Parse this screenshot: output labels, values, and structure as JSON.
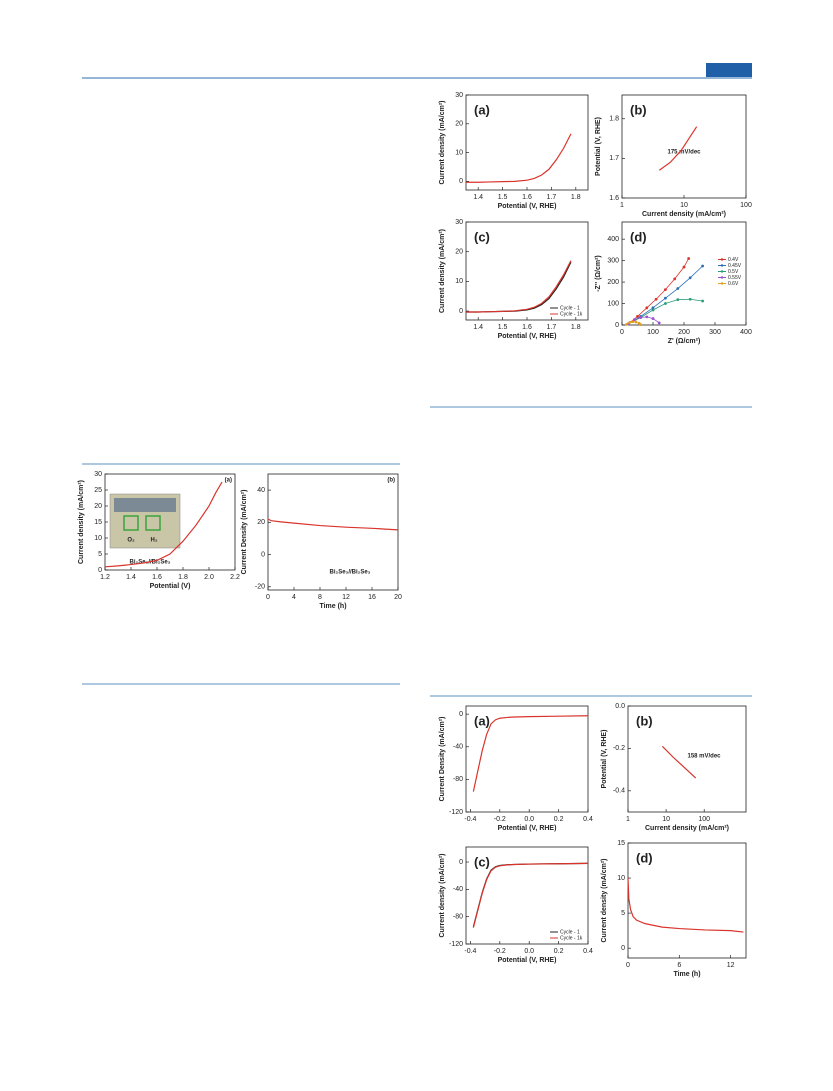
{
  "chart_data": [
    {
      "type": "line",
      "panel_label": "(a)",
      "xlabel": "Potential (V, RHE)",
      "ylabel": "Current density (mA/cm²)",
      "xlim": [
        1.35,
        1.85
      ],
      "ylim": [
        -3,
        30
      ],
      "xticks": [
        1.4,
        1.5,
        1.6,
        1.7,
        1.8
      ],
      "yticks": [
        0,
        10,
        20,
        30
      ],
      "series": [
        {
          "color": "#d9342b",
          "x": [
            1.35,
            1.4,
            1.45,
            1.5,
            1.55,
            1.6,
            1.63,
            1.66,
            1.69,
            1.72,
            1.75,
            1.78
          ],
          "values": [
            -0.3,
            -0.3,
            -0.2,
            -0.1,
            0,
            0.4,
            1,
            2.2,
            4.2,
            7.5,
            11.5,
            16.5
          ]
        }
      ]
    },
    {
      "type": "line",
      "panel_label": "(b)",
      "xlabel": "Current density (mA/cm²)",
      "ylabel": "Potential (V, RHE)",
      "note": "175 mV/dec",
      "xscale": "log",
      "xlim": [
        1,
        100
      ],
      "ylim": [
        1.6,
        1.86
      ],
      "xticks": [
        1,
        10,
        100
      ],
      "yticks": [
        1.6,
        1.7,
        1.8
      ],
      "series": [
        {
          "color": "#d9342b",
          "x": [
            4,
            6,
            9,
            12,
            16
          ],
          "values": [
            1.67,
            1.69,
            1.72,
            1.75,
            1.78
          ]
        }
      ]
    },
    {
      "type": "line",
      "panel_label": "(c)",
      "xlabel": "Potential (V, RHE)",
      "ylabel": "Current density (mA/cm²)",
      "legend": "lower right",
      "xlim": [
        1.35,
        1.85
      ],
      "ylim": [
        -3,
        30
      ],
      "xticks": [
        1.4,
        1.5,
        1.6,
        1.7,
        1.8
      ],
      "yticks": [
        0,
        10,
        20,
        30
      ],
      "series": [
        {
          "name": "Cycle - 1",
          "color": "#222222",
          "x": [
            1.35,
            1.4,
            1.45,
            1.5,
            1.55,
            1.6,
            1.63,
            1.66,
            1.69,
            1.72,
            1.75,
            1.78
          ],
          "values": [
            -0.3,
            -0.3,
            -0.2,
            -0.1,
            0,
            0.4,
            1,
            2.2,
            4.2,
            7.5,
            11.5,
            16.5
          ]
        },
        {
          "name": "Cycle - 1k",
          "color": "#d9342b",
          "x": [
            1.35,
            1.4,
            1.45,
            1.5,
            1.55,
            1.6,
            1.63,
            1.66,
            1.69,
            1.72,
            1.75,
            1.78
          ],
          "values": [
            -0.3,
            -0.3,
            -0.2,
            -0.1,
            0.1,
            0.6,
            1.3,
            2.6,
            4.8,
            8.2,
            12.2,
            17
          ]
        }
      ]
    },
    {
      "type": "scatter",
      "panel_label": "(d)",
      "xlabel": "Z' (Ω/cm²)",
      "ylabel": "-Z'' (Ω/cm²)",
      "legend": "right",
      "xlim": [
        0,
        400
      ],
      "ylim": [
        0,
        480
      ],
      "xticks": [
        0,
        100,
        200,
        300,
        400
      ],
      "yticks": [
        0,
        100,
        200,
        300,
        400
      ],
      "series": [
        {
          "name": "0.4V",
          "color": "#d9342b",
          "x": [
            20,
            50,
            80,
            110,
            140,
            170,
            200,
            215
          ],
          "values": [
            5,
            40,
            80,
            120,
            165,
            215,
            270,
            310
          ]
        },
        {
          "name": "0.45V",
          "color": "#2d6fb5",
          "x": [
            20,
            60,
            100,
            140,
            180,
            220,
            260
          ],
          "values": [
            5,
            40,
            80,
            125,
            170,
            220,
            275
          ]
        },
        {
          "name": "0.5V",
          "color": "#2a9d7a",
          "x": [
            20,
            60,
            100,
            140,
            180,
            220,
            260
          ],
          "values": [
            5,
            35,
            70,
            100,
            118,
            120,
            112
          ]
        },
        {
          "name": "0.55V",
          "color": "#9b4fd0",
          "x": [
            20,
            40,
            60,
            80,
            100,
            120
          ],
          "values": [
            5,
            25,
            35,
            38,
            30,
            10
          ]
        },
        {
          "name": "0.6V",
          "color": "#e0a020",
          "x": [
            15,
            25,
            35,
            45,
            55,
            60
          ],
          "values": [
            3,
            12,
            15,
            14,
            8,
            2
          ]
        }
      ]
    },
    {
      "type": "line",
      "panel_label": "(a)",
      "xlabel": "Potential (V)",
      "ylabel": "Current density (mA/cm²)",
      "note": "Bi₂Se₃//Bi₂Se₃",
      "inset_labels": [
        "O₂",
        "H₂"
      ],
      "xlim": [
        1.2,
        2.2
      ],
      "ylim": [
        0,
        30
      ],
      "xticks": [
        1.2,
        1.4,
        1.6,
        1.8,
        {
          "value": 2,
          "label": "2.0"
        },
        2.2
      ],
      "yticks": [
        0,
        5,
        10,
        15,
        20,
        25,
        30
      ],
      "series": [
        {
          "color": "#d9342b",
          "x": [
            1.2,
            1.3,
            1.4,
            1.5,
            1.6,
            1.7,
            1.8,
            1.9,
            2.0,
            2.05,
            2.1
          ],
          "values": [
            1,
            1.3,
            1.7,
            2.2,
            3,
            5,
            9,
            14,
            20,
            24,
            27.5
          ]
        }
      ]
    },
    {
      "type": "line",
      "panel_label": "(b)",
      "xlabel": "Time (h)",
      "ylabel": "Current Density (mA/cm²)",
      "note": "Bi₂Se₃//Bi₂Se₃",
      "xlim": [
        0,
        20
      ],
      "ylim": [
        -22,
        50
      ],
      "xticks": [
        0,
        4,
        8,
        12,
        16,
        20
      ],
      "yticks": [
        -20,
        0,
        20,
        40
      ],
      "series": [
        {
          "color": "#d9342b",
          "x": [
            0,
            0.5,
            2,
            4,
            8,
            12,
            16,
            20
          ],
          "values": [
            22,
            21,
            20.3,
            19.5,
            18,
            17,
            16.3,
            15.3
          ]
        }
      ]
    },
    {
      "type": "line",
      "panel_label": "(a)",
      "xlabel": "Potential (V, RHE)",
      "ylabel": "Current Density (mA/cm²)",
      "xlim": [
        -0.43,
        0.4
      ],
      "ylim": [
        -120,
        10
      ],
      "xticks": [
        -0.4,
        -0.2,
        {
          "value": 0,
          "label": "0.0"
        },
        0.2,
        0.4
      ],
      "yticks": [
        -120,
        -80,
        -40,
        0
      ],
      "series": [
        {
          "color": "#d9342b",
          "x": [
            -0.38,
            -0.35,
            -0.32,
            -0.29,
            -0.26,
            -0.23,
            -0.2,
            -0.15,
            -0.1,
            0,
            0.2,
            0.4
          ],
          "values": [
            -95,
            -70,
            -45,
            -25,
            -12,
            -7,
            -5,
            -4,
            -3.5,
            -3,
            -2.5,
            -2
          ]
        }
      ]
    },
    {
      "type": "line",
      "panel_label": "(b)",
      "xlabel": "Current density (mA/cm²)",
      "ylabel": "Potential (V, RHE)",
      "note": "158 mV/dec",
      "xscale": "log",
      "xlim": [
        1,
        1250
      ],
      "ylim": [
        -0.5,
        0
      ],
      "xticks": [
        1,
        10,
        100
      ],
      "yticks": [
        {
          "value": 0,
          "label": "0.0"
        },
        -0.2,
        -0.4
      ],
      "series": [
        {
          "color": "#d9342b",
          "x": [
            8,
            15,
            30,
            60
          ],
          "values": [
            -0.19,
            -0.24,
            -0.29,
            -0.34
          ]
        }
      ]
    },
    {
      "type": "line",
      "panel_label": "(c)",
      "xlabel": "Potential (V, RHE)",
      "ylabel": "Current density (mA/cm²)",
      "legend": "lower right",
      "xlim": [
        -0.43,
        0.4
      ],
      "ylim": [
        -120,
        22
      ],
      "xticks": [
        -0.4,
        -0.2,
        {
          "value": 0,
          "label": "0.0"
        },
        0.2,
        0.4
      ],
      "yticks": [
        -120,
        -80,
        -40,
        0
      ],
      "series": [
        {
          "name": "Cycle - 1",
          "color": "#222222",
          "x": [
            -0.38,
            -0.35,
            -0.32,
            -0.29,
            -0.26,
            -0.23,
            -0.2,
            -0.15,
            -0.1,
            0,
            0.2,
            0.4
          ],
          "values": [
            -95,
            -70,
            -45,
            -25,
            -12,
            -7,
            -5,
            -4,
            -3.5,
            -3,
            -2.5,
            -2
          ]
        },
        {
          "name": "Cycle - 1k",
          "color": "#d9342b",
          "x": [
            -0.38,
            -0.35,
            -0.32,
            -0.29,
            -0.26,
            -0.23,
            -0.2,
            -0.15,
            -0.1,
            0,
            0.2,
            0.4
          ],
          "values": [
            -96,
            -71,
            -46,
            -26,
            -13,
            -7.5,
            -5.5,
            -4.2,
            -3.6,
            -3,
            -2.5,
            -2
          ]
        }
      ]
    },
    {
      "type": "line",
      "panel_label": "(d)",
      "xlabel": "Time (h)",
      "ylabel": "Current density (mA/cm²)",
      "xlim": [
        0,
        13.8
      ],
      "ylim": [
        -1.4,
        15
      ],
      "xticks": [
        0,
        6,
        12
      ],
      "yticks": [
        0,
        5,
        10,
        15
      ],
      "series": [
        {
          "color": "#d9342b",
          "x": [
            0,
            0.1,
            0.3,
            0.6,
            1,
            2,
            4,
            6,
            9,
            12,
            13.5
          ],
          "values": [
            10,
            7,
            5.5,
            4.5,
            4,
            3.5,
            3,
            2.8,
            2.6,
            2.5,
            2.3
          ]
        }
      ]
    }
  ]
}
